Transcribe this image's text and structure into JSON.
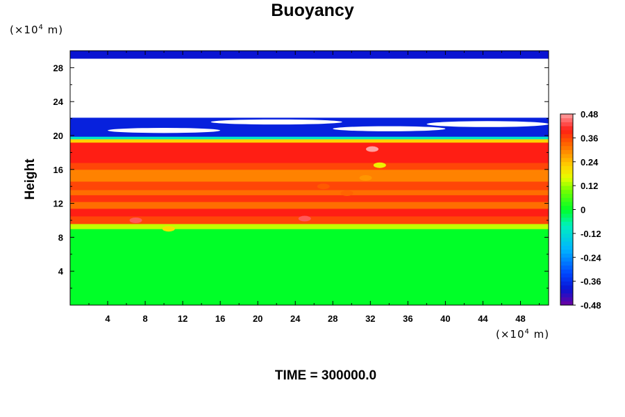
{
  "chart_data": {
    "type": "heatmap",
    "title": "Buoyancy",
    "xlabel": "",
    "ylabel": "Height",
    "x_unit": {
      "prefix": "(×10",
      "exp": "4",
      "suffix": " m)"
    },
    "y_unit": {
      "prefix": "(×10",
      "exp": "4",
      "suffix": " m)"
    },
    "xlim": [
      0,
      51
    ],
    "ylim": [
      0,
      30
    ],
    "x_ticks": [
      4,
      8,
      12,
      16,
      20,
      24,
      28,
      32,
      36,
      40,
      44,
      48
    ],
    "y_ticks": [
      4,
      8,
      12,
      16,
      20,
      24,
      28
    ],
    "colorbar": {
      "vmin": -0.48,
      "vmax": 0.48,
      "step": 0.02,
      "tick_values": [
        0.48,
        0.36,
        0.24,
        0.12,
        0,
        -0.12,
        -0.24,
        -0.36,
        -0.48
      ],
      "tick_labels": [
        "0.48",
        "0.36",
        "0.24",
        "0.12",
        "0",
        "-0.12",
        "-0.24",
        "-0.36",
        "-0.48"
      ]
    },
    "layers": [
      {
        "y0": 0,
        "y1": 9.0,
        "value": 0.0
      },
      {
        "y0": 9.0,
        "y1": 9.6,
        "value": 0.14
      },
      {
        "y0": 9.6,
        "y1": 10.5,
        "value": 0.36
      },
      {
        "y0": 10.5,
        "y1": 11.4,
        "value": 0.4
      },
      {
        "y0": 11.4,
        "y1": 12.2,
        "value": 0.32
      },
      {
        "y0": 12.2,
        "y1": 13.0,
        "value": 0.38
      },
      {
        "y0": 13.0,
        "y1": 13.6,
        "value": 0.32
      },
      {
        "y0": 13.6,
        "y1": 14.6,
        "value": 0.36
      },
      {
        "y0": 14.6,
        "y1": 16.0,
        "value": 0.3
      },
      {
        "y0": 16.0,
        "y1": 16.8,
        "value": 0.36
      },
      {
        "y0": 16.8,
        "y1": 19.2,
        "value": 0.4
      },
      {
        "y0": 19.2,
        "y1": 19.6,
        "value": 0.22
      },
      {
        "y0": 19.6,
        "y1": 19.9,
        "value": -0.1
      },
      {
        "y0": 19.9,
        "y1": 22.1,
        "value": -0.38
      },
      {
        "y0": 22.1,
        "y1": 29.1,
        "value": null
      },
      {
        "y0": 29.1,
        "y1": 30.0,
        "value": -0.4
      }
    ],
    "features": [
      {
        "x": 10.5,
        "y": 9.0,
        "value": 0.2
      },
      {
        "x": 32.2,
        "y": 18.4,
        "value": 0.48
      },
      {
        "x": 33.0,
        "y": 16.5,
        "value": 0.18
      },
      {
        "x": 31.5,
        "y": 15.0,
        "value": 0.28
      },
      {
        "x": 27.0,
        "y": 14.0,
        "value": 0.34
      },
      {
        "x": 29.5,
        "y": 13.2,
        "value": 0.33
      },
      {
        "x": 25.0,
        "y": 10.2,
        "value": 0.44
      },
      {
        "x": 7.0,
        "y": 10.0,
        "value": 0.44
      }
    ],
    "gaps": [
      {
        "x0": 4,
        "x1": 16,
        "y0": 20.3,
        "y1": 20.9
      },
      {
        "x0": 15,
        "x1": 29,
        "y0": 21.3,
        "y1": 21.9
      },
      {
        "x0": 28,
        "x1": 40,
        "y0": 20.5,
        "y1": 21.1
      },
      {
        "x0": 38,
        "x1": 51,
        "y0": 21.0,
        "y1": 21.7
      }
    ]
  },
  "footer": {
    "label": "TIME = 300000.0"
  }
}
